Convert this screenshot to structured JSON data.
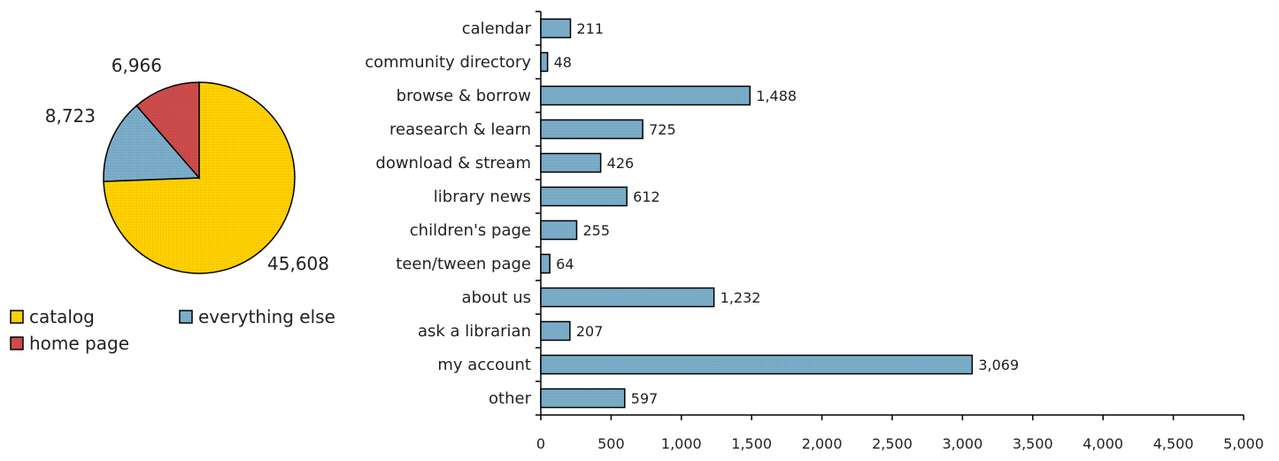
{
  "colors": {
    "catalog": "#FFD000",
    "everything_else": "#7BADC9",
    "home_page": "#CC4B4B",
    "outline": "#000000"
  },
  "chart_data": [
    {
      "type": "pie",
      "slices": [
        {
          "label": "catalog",
          "value": 45608,
          "display": "45,608",
          "color": "#FFD000"
        },
        {
          "label": "everything else",
          "value": 8723,
          "display": "8,723",
          "color": "#7BADC9"
        },
        {
          "label": "home page",
          "value": 6966,
          "display": "6,966",
          "color": "#CC4B4B"
        }
      ],
      "legend": [
        "catalog",
        "everything else",
        "home page"
      ]
    },
    {
      "type": "bar",
      "orientation": "horizontal",
      "categories": [
        "calendar",
        "community directory",
        "browse & borrow",
        "reasearch & learn",
        "download & stream",
        "library news",
        "children's page",
        "teen/tween page",
        "about us",
        "ask a librarian",
        "my account",
        "other"
      ],
      "values": [
        211,
        48,
        1488,
        725,
        426,
        612,
        255,
        64,
        1232,
        207,
        3069,
        597
      ],
      "value_labels": [
        "211",
        "48",
        "1,488",
        "725",
        "426",
        "612",
        "255",
        "64",
        "1,232",
        "207",
        "3,069",
        "597"
      ],
      "xlim": [
        0,
        5000
      ],
      "xticks": [
        "0",
        "500",
        "1,000",
        "1,500",
        "2,000",
        "2,500",
        "3,000",
        "3,500",
        "4,000",
        "4,500",
        "5,000"
      ],
      "bar_color": "#7BADC9",
      "grid": false
    }
  ]
}
